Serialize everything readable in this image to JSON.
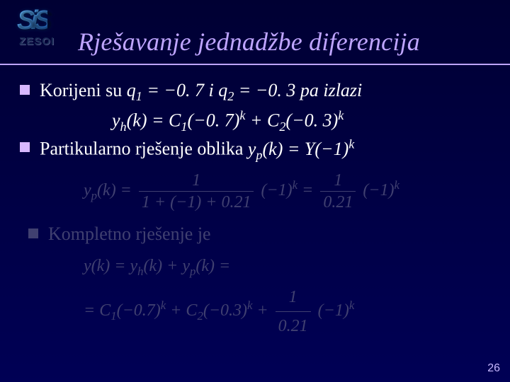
{
  "logo": {
    "letters": "SiS",
    "label": "ZESOI"
  },
  "title": "Rješavanje jednadžbe diferencija",
  "bullets": [
    {
      "interactable": false,
      "prefix": "Korijeni su ",
      "q1_var": "q",
      "q1_sub": "1",
      "q1_eq": " = −0. 7 i ",
      "q2_var": "q",
      "q2_sub": "2",
      "q2_eq": " = −0. 3 pa izlazi",
      "sub_line_html": "y<sub>h</sub>(k) = C<sub>1</sub>(−0. 7)<sup>k</sup> + C<sub>2</sub>(−0. 3)<sup>k</sup>"
    },
    {
      "interactable": false,
      "text_html": "Partikularno rješenje oblika <span class=\"eq\">y<sub>p</sub>(k) = Y(−1)<sup>k</sup></span>"
    },
    {
      "interactable": false,
      "dim": true,
      "text": "Kompletno rješenje je"
    }
  ],
  "formula1": {
    "lhs": "y<sub>p</sub>(k) =",
    "frac1": {
      "num": "1",
      "den": "1 + (−1) + 0.21"
    },
    "mid": "(−1)<sup>k</sup> =",
    "frac2": {
      "num": "1",
      "den": "0.21"
    },
    "rhs": "(−1)<sup>k</sup>"
  },
  "formula2": {
    "line1": "y(k) = y<sub>h</sub>(k) + y<sub>p</sub>(k) =",
    "line2_pre": "= C<sub>1</sub>(−0.7)<sup>k</sup> + C<sub>2</sub>(−0.3)<sup>k</sup> +",
    "line2_frac": {
      "num": "1",
      "den": "0.21"
    },
    "line2_post": "(−1)<sup>k</sup>"
  },
  "page_number": "26",
  "colors": {
    "background_top": "#000033",
    "background_bottom": "#000055",
    "title": "#bfa5ff",
    "text": "#ffffff",
    "dimmed": "#404070",
    "bullet": "#d7b8ff"
  }
}
